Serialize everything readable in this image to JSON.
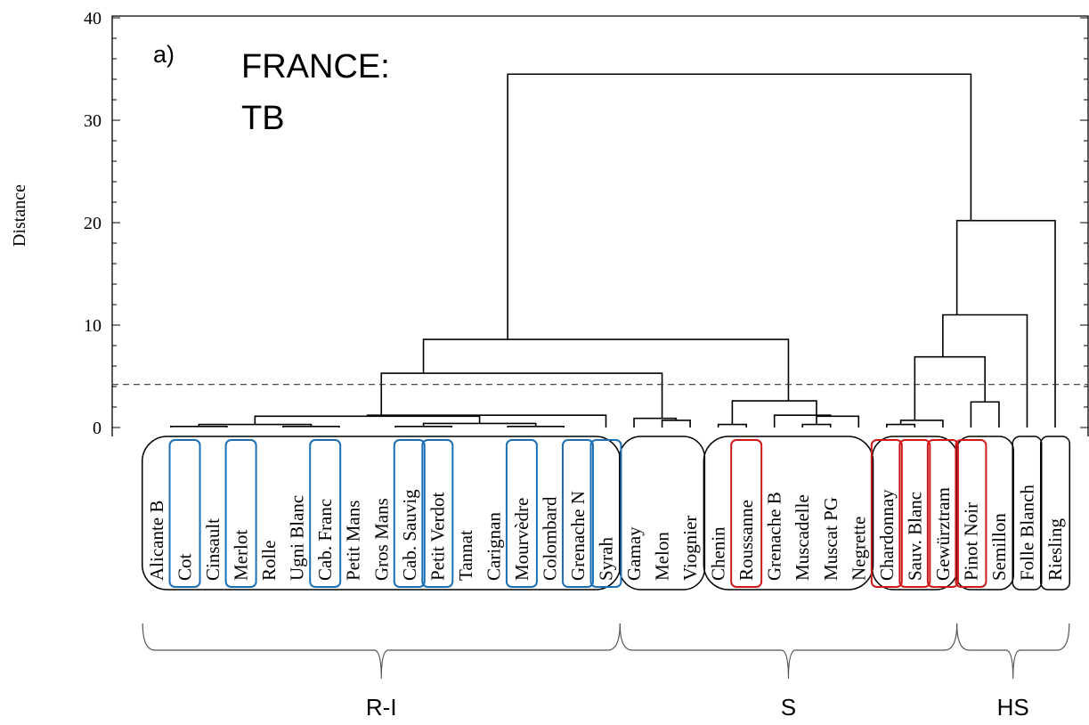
{
  "chart_data": {
    "type": "dendrogram",
    "panel_tag": "a)",
    "title_lines": [
      "FRANCE:",
      "TB"
    ],
    "ylabel": "Distance",
    "ylim": [
      0,
      40
    ],
    "yticks": [
      0,
      10,
      20,
      30,
      40
    ],
    "cut_height": 4.2,
    "leaves": [
      "Alicante B",
      "Cot",
      "Cinsault",
      "Merlot",
      "Rolle",
      "Ugni Blanc",
      "Cab. Franc",
      "Petit Mans",
      "Gros Mans",
      "Cab. Sauvig",
      "Petit Verdot",
      "Tannat",
      "Carignan",
      "Mourvèdre",
      "Colombard",
      "Grenache N",
      "Syrah",
      "Gamay",
      "Melon",
      "Viognier",
      "Chenin",
      "Roussanne",
      "Grenache B",
      "Muscadelle",
      "Muscat PG",
      "Negrette",
      "Chardonnay",
      "Sauv. Blanc",
      "Gewürztram",
      "Pinot Noir",
      "Semillon",
      "Folle Blanch",
      "Riesling"
    ],
    "merges": [
      {
        "left": [
          "Alicante B",
          "Cot"
        ],
        "right": [
          "Cinsault",
          "Merlot"
        ],
        "height": 0.1
      },
      {
        "left": [
          "Rolle",
          "Ugni Blanc"
        ],
        "right": [
          "Cab. Franc",
          "Petit Mans"
        ],
        "height": 0.1
      },
      {
        "left": [
          "Gros Mans",
          "Cab. Sauvig"
        ],
        "right": [
          "Petit Verdot",
          "Tannat"
        ],
        "height": 0.1
      },
      {
        "left": [
          "Carignan",
          "Mourvèdre"
        ],
        "right": [
          "Colombard",
          "Grenache N"
        ],
        "height": 0.1
      },
      {
        "left": [
          "Alicante B",
          "Merlot"
        ],
        "right": [
          "Rolle",
          "Petit Mans"
        ],
        "height": 0.3
      },
      {
        "left": [
          "Gros Mans",
          "Tannat"
        ],
        "right": [
          "Carignan",
          "Grenache N"
        ],
        "height": 0.4
      },
      {
        "left": [
          "Alicante B",
          "Petit Mans"
        ],
        "right": [
          "Gros Mans",
          "Grenache N"
        ],
        "height": 1.1
      },
      {
        "left": [
          "Alicante B",
          "Grenache N"
        ],
        "right": [
          "Syrah"
        ],
        "height": 1.2
      },
      {
        "left": [
          "Melon"
        ],
        "right": [
          "Viognier"
        ],
        "height": 0.7
      },
      {
        "left": [
          "Gamay"
        ],
        "right": [
          "Melon",
          "Viognier"
        ],
        "height": 0.9
      },
      {
        "left": [
          "Alicante B",
          "Syrah"
        ],
        "right": [
          "Gamay",
          "Viognier"
        ],
        "height": 5.3
      },
      {
        "left": [
          "Chenin"
        ],
        "right": [
          "Roussanne"
        ],
        "height": 0.3
      },
      {
        "left": [
          "Muscadelle"
        ],
        "right": [
          "Muscat PG"
        ],
        "height": 0.3
      },
      {
        "left": [
          "Muscadelle",
          "Muscat PG"
        ],
        "right": [
          "Negrette"
        ],
        "height": 1.1
      },
      {
        "left": [
          "Grenache B"
        ],
        "right": [
          "Muscadelle",
          "Negrette"
        ],
        "height": 1.2
      },
      {
        "left": [
          "Chenin",
          "Roussanne"
        ],
        "right": [
          "Grenache B",
          "Negrette"
        ],
        "height": 2.6
      },
      {
        "left": [
          "Alicante B",
          "Viognier"
        ],
        "right": [
          "Chenin",
          "Negrette"
        ],
        "height": 8.6
      },
      {
        "left": [
          "Chardonnay"
        ],
        "right": [
          "Sauv. Blanc"
        ],
        "height": 0.3
      },
      {
        "left": [
          "Chardonnay",
          "Sauv. Blanc"
        ],
        "right": [
          "Gewürztram"
        ],
        "height": 0.7
      },
      {
        "left": [
          "Pinot Noir"
        ],
        "right": [
          "Semillon"
        ],
        "height": 2.5
      },
      {
        "left": [
          "Chardonnay",
          "Gewürztram"
        ],
        "right": [
          "Pinot Noir",
          "Semillon"
        ],
        "height": 6.9
      },
      {
        "left": [
          "Chardonnay",
          "Semillon"
        ],
        "right": [
          "Folle Blanch"
        ],
        "height": 11.0
      },
      {
        "left": [
          "Chardonnay",
          "Folle Blanch"
        ],
        "right": [
          "Riesling"
        ],
        "height": 20.2
      },
      {
        "left": [
          "Alicante B",
          "Negrette"
        ],
        "right": [
          "Chardonnay",
          "Riesling"
        ],
        "height": 34.5
      }
    ],
    "clusters": [
      {
        "first": "Alicante B",
        "last": "Syrah"
      },
      {
        "first": "Gamay",
        "last": "Viognier"
      },
      {
        "first": "Chenin",
        "last": "Negrette"
      },
      {
        "first": "Chardonnay",
        "last": "Gewürztram"
      },
      {
        "first": "Pinot Noir",
        "last": "Semillon"
      },
      {
        "first": "Folle Blanch",
        "last": "Folle Blanch"
      },
      {
        "first": "Riesling",
        "last": "Riesling"
      }
    ],
    "highlighted": {
      "blue": [
        "Cot",
        "Merlot",
        "Cab. Franc",
        "Cab. Sauvig",
        "Petit Verdot",
        "Mourvèdre",
        "Grenache N",
        "Syrah"
      ],
      "red": [
        "Roussanne",
        "Chardonnay",
        "Sauv. Blanc",
        "Gewürztram",
        "Pinot Noir"
      ]
    },
    "groups": [
      {
        "label": "R-I",
        "first": "Alicante B",
        "last": "Syrah"
      },
      {
        "label": "S",
        "first": "Gamay",
        "last": "Gewürztram"
      },
      {
        "label": "HS",
        "first": "Pinot Noir",
        "last": "Riesling"
      }
    ],
    "colors": {
      "blue_box": "#1a6fb5",
      "red_box": "#d01818",
      "line": "#000000",
      "cut_line": "#333333"
    }
  }
}
